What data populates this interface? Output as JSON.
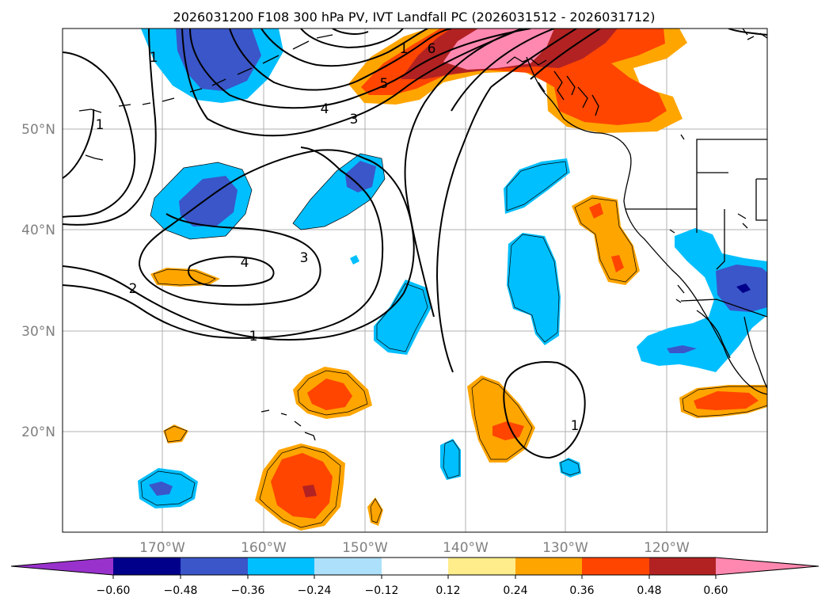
{
  "title": "2026031200 F108 300 hPa PV, IVT Landfall PC (2026031512 - 2026031712)",
  "map": {
    "lon_ticks": [
      "170°W",
      "160°W",
      "150°W",
      "140°W",
      "130°W",
      "120°W"
    ],
    "lat_ticks": [
      "50°N",
      "40°N",
      "30°N",
      "20°N"
    ],
    "contour_labels": [
      "1",
      "6",
      "5",
      "4",
      "3",
      "1",
      "3",
      "4",
      "2",
      "1",
      "1",
      "1"
    ]
  },
  "colorbar": {
    "ticks": [
      "−0.60",
      "−0.48",
      "−0.36",
      "−0.24",
      "−0.12",
      "0.12",
      "0.24",
      "0.36",
      "0.48",
      "0.60"
    ],
    "colors": {
      "under": "#9932cc",
      "neg_060": "#00008b",
      "neg_048": "#3a56c8",
      "neg_036": "#00bfff",
      "neg_024": "#ade0fa",
      "neutral": "#ffffff",
      "pos_012": "#ffec8b",
      "pos_024": "#ffa500",
      "pos_036": "#ff4500",
      "pos_048": "#b22222",
      "over": "#ff88b0"
    }
  }
}
